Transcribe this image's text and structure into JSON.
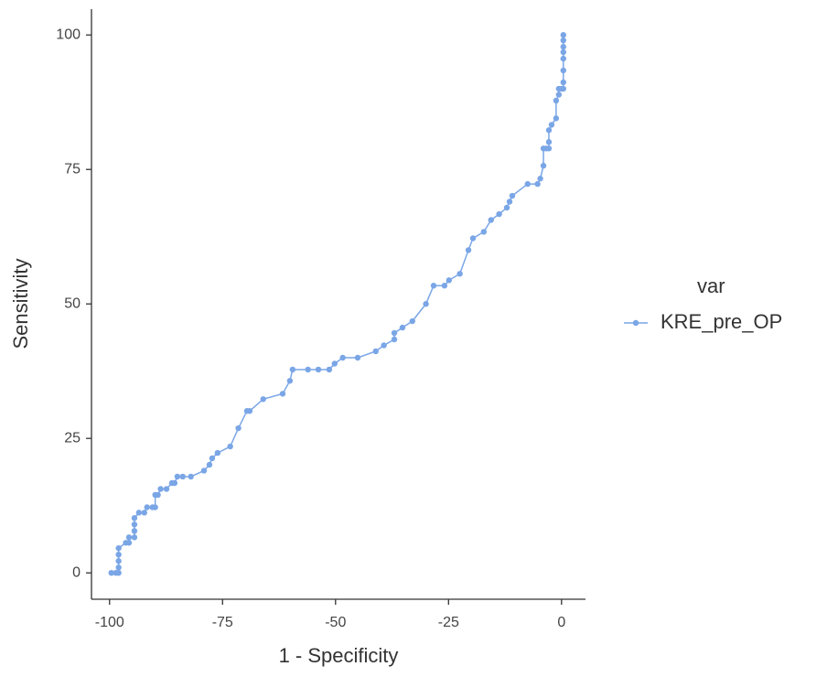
{
  "chart_data": {
    "type": "line",
    "x_label": "1 - Specificity",
    "y_label": "Sensitivity",
    "legend_title": "var",
    "x": [
      -99.6,
      -98.6,
      -98,
      -98,
      -98,
      -98,
      -98,
      -96.4,
      -95.7,
      -95.7,
      -94.5,
      -94.5,
      -94.5,
      -94.5,
      -93.5,
      -92.3,
      -91.7,
      -90.5,
      -89.9,
      -89.9,
      -89.3,
      -88.7,
      -87.4,
      -86.2,
      -85.6,
      -85,
      -83.8,
      -82,
      -79.1,
      -77.9,
      -77.3,
      -76.1,
      -73.3,
      -71.5,
      -69.6,
      -69,
      -66,
      -61.7,
      -60.1,
      -59.5,
      -56.1,
      -53.8,
      -51.4,
      -50.2,
      -48.4,
      -45.1,
      -41.1,
      -39.3,
      -37,
      -37,
      -35.2,
      -33,
      -30,
      -28.3,
      -25.9,
      -24.9,
      -22.5,
      -20.6,
      -19.6,
      -17.2,
      -15.6,
      -13.8,
      -12.1,
      -11.5,
      -10.9,
      -7.5,
      -5.3,
      -4.7,
      -4,
      -4,
      -3.4,
      -2.8,
      -2.8,
      -2.8,
      -2.2,
      -1.2,
      -1.2,
      -0.6,
      -0.6,
      0,
      0.4,
      0.4,
      0.4,
      0.4,
      0.4,
      0.4,
      0.4,
      0.4
    ],
    "series": [
      {
        "name": "KRE_pre_OP",
        "color": "#7aa6e6",
        "values": [
          0,
          0,
          0,
          1,
          2.2,
          3.4,
          4.6,
          5.6,
          5.6,
          6.6,
          6.6,
          7.8,
          9,
          10.2,
          11.2,
          11.2,
          12.2,
          12.2,
          12.2,
          14.5,
          14.5,
          15.6,
          15.6,
          16.7,
          16.7,
          17.9,
          17.9,
          17.9,
          19,
          20.1,
          21.3,
          22.3,
          23.5,
          26.9,
          30.1,
          30.1,
          32.3,
          33.3,
          35.7,
          37.8,
          37.8,
          37.8,
          37.8,
          38.9,
          40,
          40,
          41.2,
          42.3,
          43.4,
          44.6,
          45.6,
          46.8,
          50,
          53.4,
          53.4,
          54.4,
          55.6,
          60,
          62.2,
          63.4,
          65.6,
          66.7,
          67.9,
          69,
          70.1,
          72.3,
          72.3,
          73.3,
          75.7,
          78.9,
          78.9,
          78.9,
          80.1,
          82.3,
          83.3,
          84.5,
          87.8,
          88.9,
          90,
          90,
          90,
          91.2,
          93.4,
          95.6,
          96.8,
          97.8,
          99,
          100
        ]
      }
    ],
    "xlim": [
      -104,
      5.3
    ],
    "ylim": [
      -4.9,
      104.8
    ],
    "xticks": [
      -100,
      -75,
      -50,
      -25,
      0
    ],
    "yticks": [
      0,
      25,
      50,
      75,
      100
    ],
    "grid": false
  }
}
